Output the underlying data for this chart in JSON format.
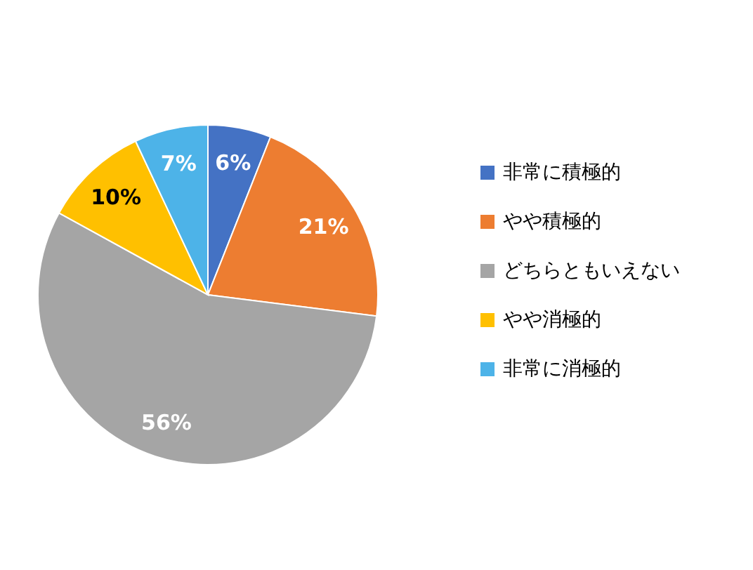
{
  "chart_data": {
    "type": "pie",
    "categories": [
      "非常に積極的",
      "やや積極的",
      "どちらともいえない",
      "やや消極的",
      "非常に消極的"
    ],
    "values": [
      6,
      21,
      56,
      10,
      7
    ],
    "colors": [
      "#4472c4",
      "#ed7d31",
      "#a5a5a5",
      "#ffc000",
      "#4db3e8"
    ],
    "value_labels": [
      "6%",
      "21%",
      "56%",
      "10%",
      "7%"
    ],
    "legend": "right"
  }
}
